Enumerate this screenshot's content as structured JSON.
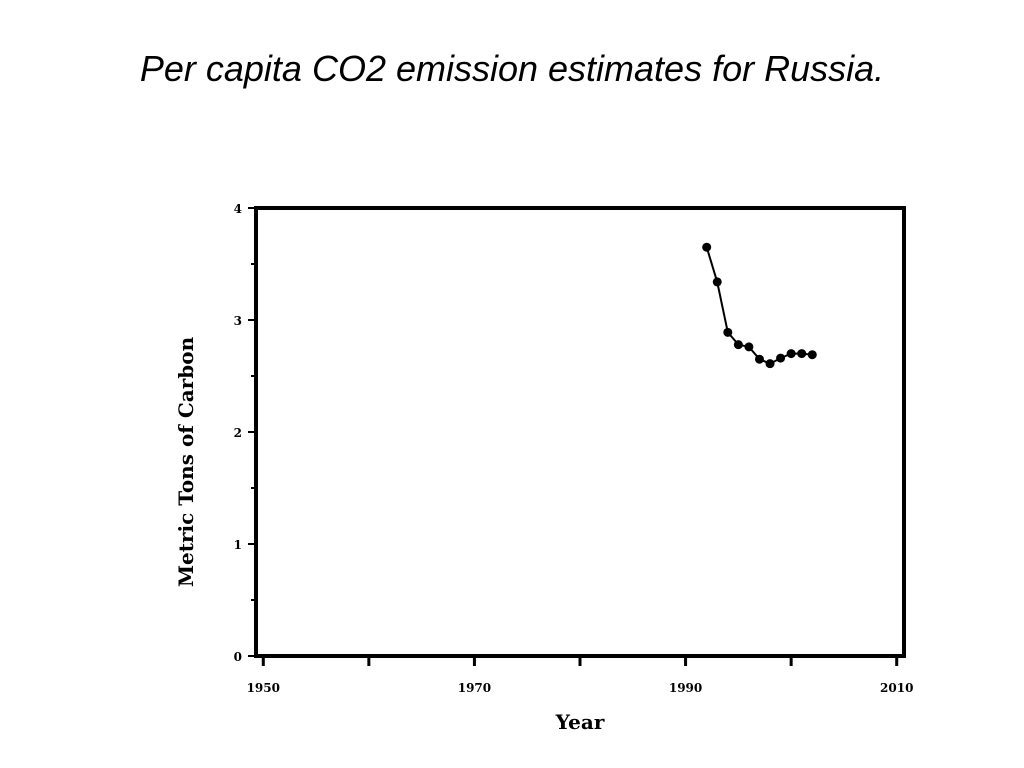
{
  "slide": {
    "title": "Per capita CO2 emission estimates for Russia."
  },
  "chart_data": {
    "type": "line",
    "xlabel": "Year",
    "ylabel": "Metric Tons of Carbon",
    "xlim": [
      1949.5,
      2010.5
    ],
    "ylim": [
      0,
      4
    ],
    "x_ticks": [
      1950,
      1970,
      1990,
      2010
    ],
    "x_minor_ticks": [
      1960,
      1980,
      2000
    ],
    "y_ticks": [
      0,
      1,
      2,
      3,
      4
    ],
    "y_minor_ticks": [
      0.5,
      1.5,
      2.5,
      3.5
    ],
    "grid": false,
    "color": "#000000",
    "series": [
      {
        "x": [
          1992,
          1993,
          1994,
          1995,
          1996,
          1997,
          1998,
          1999,
          2000,
          2001,
          2002
        ],
        "y": [
          3.65,
          3.34,
          2.89,
          2.78,
          2.76,
          2.65,
          2.61,
          2.66,
          2.7,
          2.7,
          2.69
        ]
      }
    ]
  }
}
